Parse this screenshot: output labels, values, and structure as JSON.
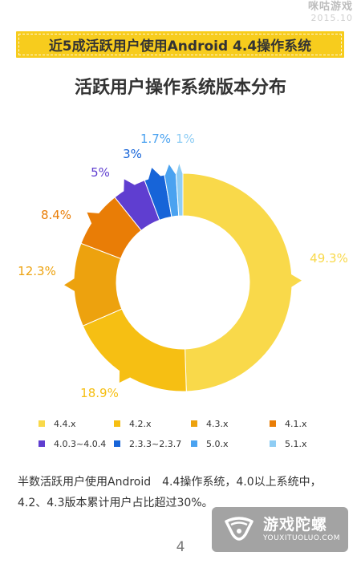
{
  "brand": {
    "logo": "咪咕游戏",
    "date": "2015.10"
  },
  "banner": {
    "text": "近5成活跃用户使用Android 4.4操作系统"
  },
  "chart_data": {
    "type": "pie",
    "title": "活跃用户操作系统版本分布",
    "donut": true,
    "legend_position": "bottom",
    "slices": [
      {
        "name": "4.4.x",
        "value": 49.3,
        "label": "49.3%",
        "color": "#f9d94a"
      },
      {
        "name": "4.2.x",
        "value": 18.9,
        "label": "18.9%",
        "color": "#f6bf13"
      },
      {
        "name": "4.3.x",
        "value": 12.3,
        "label": "12.3%",
        "color": "#eda20e"
      },
      {
        "name": "4.1.x",
        "value": 8.4,
        "label": "8.4%",
        "color": "#e97d06"
      },
      {
        "name": "4.0.3~4.0.4",
        "value": 5,
        "label": "5%",
        "color": "#5f3ed0"
      },
      {
        "name": "2.3.3~2.3.7",
        "value": 3,
        "label": "3%",
        "color": "#1764d8"
      },
      {
        "name": "5.0.x",
        "value": 1.7,
        "label": "1.7%",
        "color": "#4aa2f0"
      },
      {
        "name": "5.1.x",
        "value": 1,
        "label": "1%",
        "color": "#8fcdf4"
      }
    ]
  },
  "summary": "半数活跃用户使用Android　4.4操作系统，4.0以上系统中，4.2、4.3版本累计用户占比超过30%。",
  "page_number": "4",
  "watermark": {
    "name": "游戏陀螺",
    "url": "YOUXITUOLUO.COM"
  }
}
